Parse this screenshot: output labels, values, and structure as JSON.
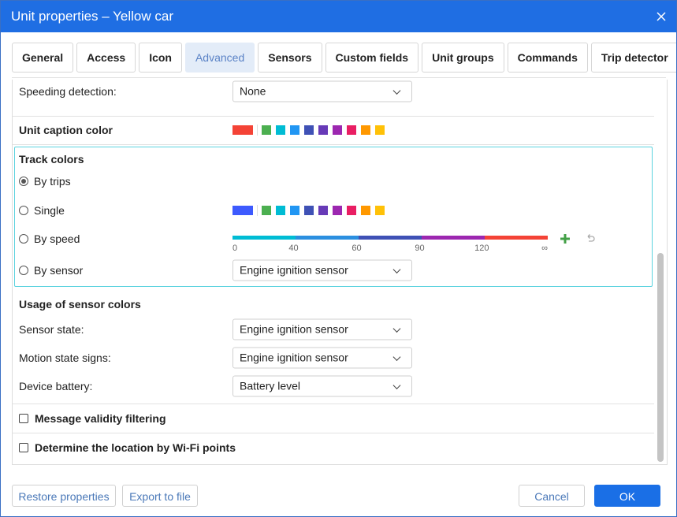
{
  "dialog": {
    "title": "Unit properties – Yellow car"
  },
  "tabs": [
    "General",
    "Access",
    "Icon",
    "Advanced",
    "Sensors",
    "Custom fields",
    "Unit groups",
    "Commands",
    "Trip detector"
  ],
  "speeding": {
    "label": "Speeding detection:",
    "value": "None"
  },
  "caption_color": {
    "label": "Unit caption color",
    "selected": "#f44336",
    "palette": [
      "#4caf50",
      "#00bcd4",
      "#2196f3",
      "#3f51b5",
      "#673ab7",
      "#9c27b0",
      "#e91e63",
      "#ff9800",
      "#ffc107"
    ]
  },
  "track_colors": {
    "title": "Track colors",
    "options": [
      "By trips",
      "Single",
      "By speed",
      "By sensor"
    ],
    "single_selected": "#3d5afe",
    "speed_scale": [
      "0",
      "40",
      "60",
      "90",
      "120",
      "∞"
    ],
    "speed_colors": [
      "#00bcd4",
      "#2b8fe0",
      "#3f51b5",
      "#9c27b0",
      "#f44336"
    ],
    "sensor": "Engine ignition sensor"
  },
  "sensor_colors": {
    "title": "Usage of sensor colors",
    "rows": [
      {
        "label": "Sensor state:",
        "value": "Engine ignition sensor"
      },
      {
        "label": "Motion state signs:",
        "value": "Engine ignition sensor"
      },
      {
        "label": "Device battery:",
        "value": "Battery level"
      }
    ]
  },
  "checkboxes": [
    "Message validity filtering",
    "Determine the location by Wi-Fi points"
  ],
  "footer": {
    "left": [
      "Restore properties",
      "Export to file"
    ],
    "cancel": "Cancel",
    "ok": "OK"
  }
}
